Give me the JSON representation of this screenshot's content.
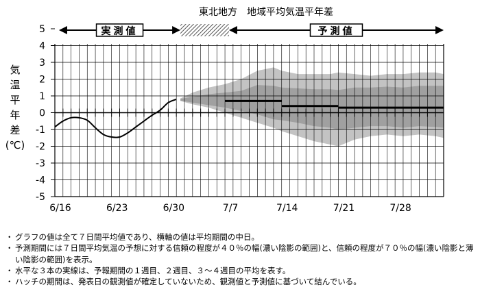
{
  "chart_data": {
    "type": "line",
    "title": "東北地方　地域平均気温平年差",
    "ylabel": "気温平年差（℃）",
    "ylabel_chars": [
      "気",
      "温",
      "平",
      "年",
      "差",
      "(℃)"
    ],
    "ylim": [
      -5,
      5
    ],
    "yticks": [
      5,
      4,
      3,
      2,
      1,
      0,
      -1,
      -2,
      -3,
      -4,
      -5
    ],
    "xlim": [
      0,
      48
    ],
    "xticks": [
      {
        "label": "6/16",
        "x": 0
      },
      {
        "label": "6/23",
        "x": 7
      },
      {
        "label": "6/30",
        "x": 14
      },
      {
        "label": "7/7",
        "x": 21
      },
      {
        "label": "7/14",
        "x": 28
      },
      {
        "label": "7/21",
        "x": 35
      },
      {
        "label": "7/28",
        "x": 42
      }
    ],
    "periods": {
      "observed_label": "実測値",
      "observed": [
        0,
        15.5
      ],
      "hatch": [
        15.5,
        21.5
      ],
      "forecast_label": "予測値",
      "forecast": [
        21.5,
        48
      ]
    },
    "observed": {
      "x": [
        0,
        1,
        2,
        3,
        4,
        5,
        6,
        7,
        8,
        9,
        10,
        11,
        12,
        13,
        14,
        15
      ],
      "values": [
        -0.85,
        -0.5,
        -0.3,
        -0.3,
        -0.45,
        -0.9,
        -1.3,
        -1.45,
        -1.45,
        -1.2,
        -0.85,
        -0.5,
        -0.15,
        0.15,
        0.6,
        0.8
      ]
    },
    "band70": {
      "x": [
        15.5,
        17,
        19,
        21,
        23,
        25,
        27,
        28,
        30,
        32,
        34,
        35,
        37,
        39,
        41,
        43,
        45,
        47,
        48
      ],
      "upper": [
        0.85,
        1.2,
        1.5,
        1.7,
        2.0,
        2.5,
        2.7,
        2.5,
        2.3,
        2.3,
        2.3,
        2.4,
        2.3,
        2.2,
        2.3,
        2.3,
        2.4,
        2.4,
        2.3
      ],
      "lower": [
        0.7,
        0.5,
        0.3,
        0.0,
        -0.3,
        -0.6,
        -0.9,
        -1.1,
        -1.4,
        -1.7,
        -1.9,
        -2.0,
        -1.6,
        -1.4,
        -1.3,
        -1.4,
        -1.3,
        -1.4,
        -1.5
      ]
    },
    "band40": {
      "x": [
        15.5,
        17,
        19,
        21,
        23,
        25,
        27,
        28,
        30,
        32,
        34,
        35,
        37,
        39,
        41,
        43,
        45,
        47,
        48
      ],
      "upper": [
        0.82,
        0.95,
        1.1,
        1.2,
        1.3,
        1.65,
        1.6,
        1.5,
        1.45,
        1.4,
        1.4,
        1.35,
        1.5,
        1.5,
        1.55,
        1.5,
        1.6,
        1.6,
        1.6
      ],
      "lower": [
        0.72,
        0.6,
        0.45,
        0.3,
        0.1,
        -0.1,
        -0.4,
        -0.45,
        -0.6,
        -0.8,
        -0.9,
        -1.0,
        -0.9,
        -0.8,
        -0.8,
        -0.9,
        -0.8,
        -0.85,
        -0.9
      ]
    },
    "forecast_means": [
      {
        "x": [
          21,
          28
        ],
        "value": 0.7
      },
      {
        "x": [
          28,
          35
        ],
        "value": 0.4
      },
      {
        "x": [
          35,
          48
        ],
        "value": 0.3
      }
    ],
    "colors": {
      "band70": "#c3c3c3",
      "band40": "#a0a0a0",
      "line": "#000000",
      "grid": "#000000"
    }
  },
  "notes": [
    "グラフの値は全て７日間平均値であり、横軸の値は平均期間の中日。",
    "予測期間には７日間平均気温の予想に対する信頼の程度が４０％の幅(濃い陰影の範囲)と、信頼の程度が７０％の幅(濃い陰影と薄い陰影の範囲)を表示。",
    "水平な３本の実線は、予報期間の１週目、２週目、３～４週目の平均を表す。",
    "ハッチの期間は、発表日の観測値が確定していないため、観測値と予測値に基づいて結んでいる。"
  ],
  "bullet": "・"
}
